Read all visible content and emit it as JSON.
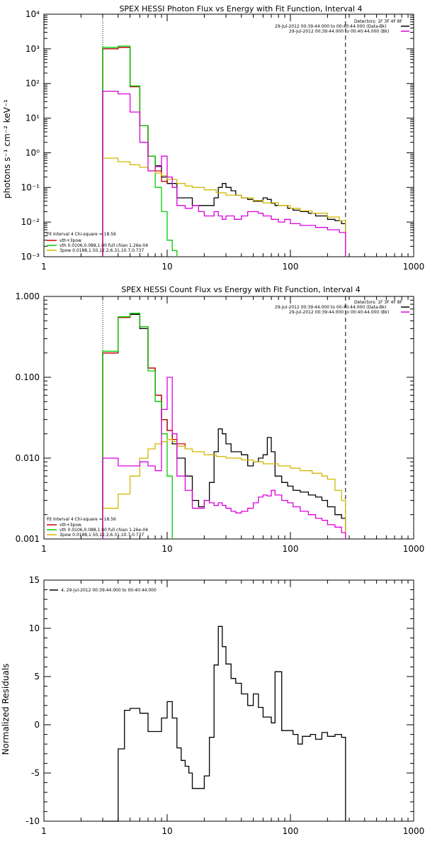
{
  "charts": [
    {
      "type": "line",
      "title": "SPEX HESSI Photon Flux vs Energy with Fit Function, Interval 4",
      "ylabel": "photons s⁻¹ cm⁻² keV⁻¹",
      "xscale": "log",
      "yscale": "log",
      "xlim": [
        1,
        1000
      ],
      "ylim": [
        0.001,
        10000
      ],
      "xticks": [
        1,
        10,
        100,
        1000
      ],
      "xtick_labels": [
        "1",
        "10",
        "100",
        "1000"
      ],
      "yticks": [
        0.001,
        0.01,
        0.1,
        1,
        10,
        100,
        1000,
        10000
      ],
      "ytick_labels": [
        "10⁻³",
        "10⁻²",
        "10⁻¹",
        "10⁰",
        "10¹",
        "10²",
        "10³",
        "10⁴"
      ],
      "vlines": [
        {
          "x": 3,
          "style": "dotted"
        },
        {
          "x": 280,
          "style": "dashed"
        }
      ],
      "legend_top": [
        "Detectors: 1F 3F 4F 8F",
        "29-Jul-2012 00:39:44.000 to 00:40:44.000 (Data-Bk)",
        "29-Jul-2012 00:39:44.000 to 00:40:44.000 (Bk)"
      ],
      "legend_bottom": [
        "Fit Interval 4   Chi-square = 18.56",
        "vth+3pow",
        "vth 0.0106,0.088,1.00  full chian 1.26e-04",
        "3pow 0.0188,1.50,12.2,6.31,10.7,0.737"
      ],
      "series": [
        {
          "name": "Data-Bk",
          "color": "#000000",
          "x": [
            3,
            4,
            5,
            6,
            7,
            8,
            9,
            10,
            11,
            12,
            14,
            16,
            18,
            20,
            22,
            24,
            26,
            28,
            30,
            33,
            36,
            40,
            45,
            50,
            55,
            60,
            65,
            70,
            75,
            85,
            95,
            105,
            120,
            140,
            160,
            180,
            200,
            230,
            260,
            280
          ],
          "y": [
            1000,
            1100,
            80,
            6,
            0.8,
            0.42,
            0.2,
            0.13,
            0.13,
            0.05,
            0.05,
            0.03,
            0.03,
            0.03,
            0.03,
            0.05,
            0.1,
            0.13,
            0.1,
            0.08,
            0.06,
            0.05,
            0.045,
            0.04,
            0.04,
            0.05,
            0.045,
            0.035,
            0.03,
            0.03,
            0.025,
            0.022,
            0.02,
            0.018,
            0.015,
            0.015,
            0.012,
            0.011,
            0.009,
            0.001
          ]
        },
        {
          "name": "vth+3pow",
          "color": "#cc0000",
          "x": [
            3,
            4,
            5,
            6,
            7,
            8,
            9,
            10
          ],
          "y": [
            1000,
            1100,
            80,
            6,
            0.8,
            0.3,
            0.15,
            0.13
          ]
        },
        {
          "name": "vth",
          "color": "#00cc00",
          "x": [
            3,
            4,
            5,
            6,
            7,
            8,
            9,
            10,
            11,
            12
          ],
          "y": [
            1100,
            1200,
            85,
            6,
            0.8,
            0.1,
            0.02,
            0.003,
            0.0015,
            0.001
          ]
        },
        {
          "name": "3pow",
          "color": "#d4b800",
          "x": [
            3,
            4,
            5,
            6,
            7,
            8,
            9,
            10,
            12,
            14,
            16,
            20,
            25,
            30,
            40,
            50,
            60,
            80,
            100,
            120,
            150,
            200,
            250,
            280
          ],
          "y": [
            0.7,
            0.55,
            0.45,
            0.38,
            0.3,
            0.26,
            0.22,
            0.17,
            0.13,
            0.11,
            0.1,
            0.085,
            0.07,
            0.06,
            0.05,
            0.042,
            0.036,
            0.03,
            0.025,
            0.021,
            0.018,
            0.014,
            0.011,
            0.001
          ]
        },
        {
          "name": "Bk",
          "color": "#dd00dd",
          "x": [
            3,
            4,
            5,
            6,
            7,
            8,
            9,
            10,
            11,
            12,
            14,
            16,
            18,
            20,
            22,
            24,
            26,
            28,
            30,
            35,
            40,
            45,
            50,
            55,
            60,
            70,
            80,
            90,
            100,
            120,
            140,
            160,
            200,
            250,
            280
          ],
          "y": [
            60,
            50,
            15,
            2,
            0.3,
            0.4,
            0.8,
            0.2,
            0.1,
            0.03,
            0.025,
            0.03,
            0.02,
            0.015,
            0.015,
            0.02,
            0.015,
            0.012,
            0.015,
            0.012,
            0.015,
            0.02,
            0.02,
            0.018,
            0.015,
            0.012,
            0.01,
            0.012,
            0.009,
            0.008,
            0.008,
            0.007,
            0.006,
            0.005,
            0.001
          ]
        }
      ]
    },
    {
      "type": "line",
      "title": "SPEX HESSI Count Flux vs Energy with Fit Function, Interval 4",
      "ylabel": "",
      "xscale": "log",
      "yscale": "log",
      "xlim": [
        1,
        1000
      ],
      "ylim": [
        0.001,
        1
      ],
      "xticks": [
        1,
        10,
        100,
        1000
      ],
      "xtick_labels": [
        "1",
        "10",
        "100",
        "1000"
      ],
      "yticks": [
        0.001,
        0.01,
        0.1,
        1
      ],
      "ytick_labels": [
        "0.001",
        "0.010",
        "0.100",
        "1.000"
      ],
      "vlines": [
        {
          "x": 3,
          "style": "dotted"
        },
        {
          "x": 280,
          "style": "dashed"
        }
      ],
      "legend_top": [
        "Detectors: 1F 3F 4F 8F",
        "29-Jul-2012 00:39:44.000 to 00:40:44.000 (Data-Bk)",
        "29-Jul-2012 00:39:44.000 to 00:40:44.000 (Bk)"
      ],
      "legend_bottom": [
        "Fit Interval 4   Chi-square = 18.56",
        "vth+3pow",
        "vth 0.0106,0.088,1.00  full chian 1.26e-04",
        "3pow 0.0188,1.50,12.2,6.31,10.7,0.737"
      ],
      "series": [
        {
          "name": "Data-Bk",
          "color": "#000000",
          "x": [
            3,
            4,
            5,
            6,
            7,
            8,
            9,
            10,
            11,
            12,
            14,
            16,
            18,
            20,
            22,
            24,
            26,
            28,
            30,
            33,
            36,
            40,
            45,
            50,
            55,
            60,
            65,
            70,
            75,
            85,
            95,
            105,
            120,
            140,
            160,
            180,
            200,
            230,
            260,
            280
          ],
          "y": [
            0.2,
            0.55,
            0.6,
            0.4,
            0.13,
            0.06,
            0.03,
            0.022,
            0.015,
            0.01,
            0.006,
            0.003,
            0.0025,
            0.003,
            0.005,
            0.012,
            0.023,
            0.02,
            0.015,
            0.012,
            0.012,
            0.011,
            0.008,
            0.009,
            0.01,
            0.011,
            0.018,
            0.012,
            0.006,
            0.005,
            0.0045,
            0.004,
            0.0038,
            0.0035,
            0.0033,
            0.003,
            0.0025,
            0.002,
            0.0018,
            0.001
          ]
        },
        {
          "name": "vth+3pow",
          "color": "#cc0000",
          "x": [
            3,
            4,
            5,
            6,
            7,
            8,
            9,
            10,
            11,
            12,
            14
          ],
          "y": [
            0.2,
            0.55,
            0.62,
            0.42,
            0.13,
            0.06,
            0.03,
            0.022,
            0.017,
            0.015,
            0.013
          ]
        },
        {
          "name": "vth",
          "color": "#00cc00",
          "x": [
            3,
            4,
            5,
            6,
            7,
            8,
            9,
            10,
            11
          ],
          "y": [
            0.21,
            0.56,
            0.62,
            0.42,
            0.12,
            0.05,
            0.02,
            0.006,
            0.001
          ]
        },
        {
          "name": "3pow",
          "color": "#d4b800",
          "x": [
            3,
            4,
            5,
            6,
            7,
            8,
            9,
            10,
            11,
            12,
            14,
            16,
            20,
            25,
            30,
            40,
            50,
            60,
            80,
            100,
            120,
            150,
            180,
            200,
            230,
            260,
            280
          ],
          "y": [
            0.0024,
            0.0036,
            0.006,
            0.01,
            0.013,
            0.015,
            0.016,
            0.017,
            0.016,
            0.014,
            0.013,
            0.012,
            0.011,
            0.0105,
            0.01,
            0.0095,
            0.009,
            0.0085,
            0.008,
            0.0075,
            0.007,
            0.0065,
            0.006,
            0.0055,
            0.004,
            0.003,
            0.001
          ]
        },
        {
          "name": "Bk",
          "color": "#dd00dd",
          "x": [
            3,
            4,
            5,
            6,
            7,
            8,
            9,
            10,
            11,
            12,
            14,
            16,
            18,
            20,
            22,
            24,
            26,
            28,
            30,
            33,
            36,
            40,
            45,
            50,
            55,
            60,
            65,
            70,
            75,
            85,
            95,
            105,
            120,
            140,
            160,
            180,
            200,
            230,
            260,
            280
          ],
          "y": [
            0.01,
            0.008,
            0.008,
            0.009,
            0.008,
            0.007,
            0.04,
            0.1,
            0.02,
            0.006,
            0.004,
            0.0024,
            0.0024,
            0.003,
            0.0028,
            0.0026,
            0.0028,
            0.0026,
            0.0024,
            0.0022,
            0.0021,
            0.0022,
            0.0024,
            0.0028,
            0.0033,
            0.0035,
            0.0034,
            0.004,
            0.0035,
            0.003,
            0.0028,
            0.0025,
            0.0022,
            0.002,
            0.0018,
            0.0017,
            0.0015,
            0.0014,
            0.0012,
            0.001
          ]
        }
      ]
    },
    {
      "type": "line",
      "title": "",
      "ylabel": "Normalized Residuals",
      "xscale": "log",
      "yscale": "linear",
      "xlim": [
        1,
        1000
      ],
      "ylim": [
        -10,
        15
      ],
      "xticks": [
        1,
        10,
        100,
        1000
      ],
      "xtick_labels": [
        "1",
        "10",
        "100",
        "1000"
      ],
      "yticks": [
        -10,
        -5,
        0,
        5,
        10,
        15
      ],
      "ytick_labels": [
        "-10",
        "-5",
        "0",
        "5",
        "10",
        "15"
      ],
      "vlines": [],
      "legend_top": [
        "4, 29-Jul-2012 00:39:44.000 to 00:40:44.000"
      ],
      "legend_bottom": [],
      "series": [
        {
          "name": "",
          "color": "#000000",
          "x": [
            3,
            4,
            4.5,
            5,
            6,
            7,
            8,
            9,
            10,
            11,
            12,
            13,
            14,
            15,
            16,
            18,
            20,
            22,
            24,
            26,
            28,
            30,
            33,
            36,
            40,
            45,
            50,
            55,
            60,
            65,
            70,
            75,
            85,
            95,
            105,
            115,
            125,
            135,
            145,
            160,
            180,
            200,
            230,
            260,
            280
          ],
          "y": [
            -10,
            -2.5,
            1.5,
            1.7,
            1.2,
            -0.7,
            -0.7,
            0.7,
            2.4,
            0.7,
            -2.4,
            -3.7,
            -4.3,
            -5.0,
            -6.6,
            -6.6,
            -5.3,
            -1.3,
            6.2,
            10.2,
            8.1,
            6.3,
            4.8,
            4.3,
            3.2,
            2.0,
            3.2,
            1.8,
            0.8,
            0.8,
            0.2,
            5.5,
            -0.6,
            -0.6,
            -1.0,
            -2.0,
            -1.2,
            -1.2,
            -1.0,
            -1.5,
            -0.8,
            -1.2,
            -1.0,
            -1.3,
            -10
          ]
        }
      ]
    }
  ]
}
